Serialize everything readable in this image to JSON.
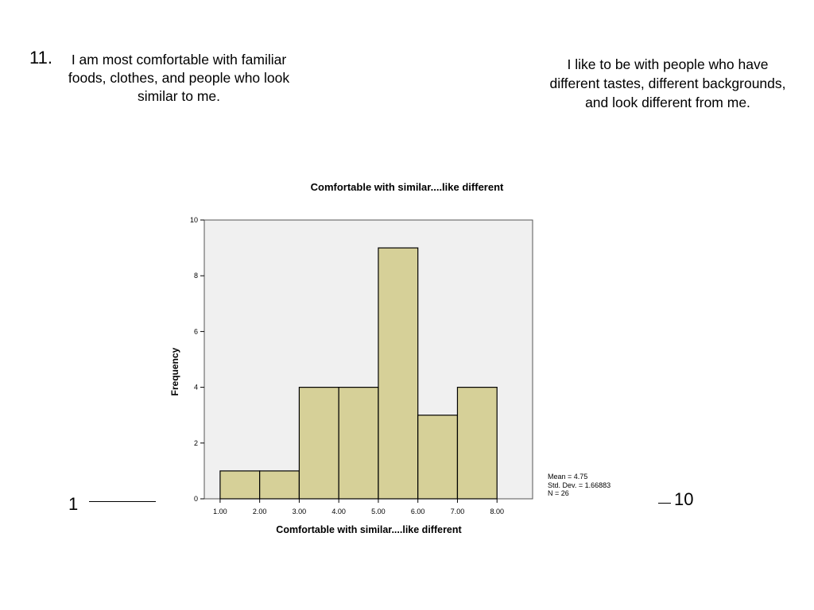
{
  "question": {
    "number": "11.",
    "left_statement": "I am most comfortable with familiar foods, clothes, and people who look similar to me.",
    "right_statement": "I like to be with people who have different tastes, different backgrounds, and look different from me.",
    "scale_min_label": "1",
    "scale_max_label": "10"
  },
  "chart_data": {
    "type": "bar",
    "title": "Comfortable with similar....like different",
    "xlabel": "Comfortable with similar....like different",
    "ylabel": "Frequency",
    "bin_edges": [
      1,
      2,
      3,
      4,
      5,
      6,
      7,
      8
    ],
    "bin_edge_labels": [
      "1.00",
      "2.00",
      "3.00",
      "4.00",
      "5.00",
      "6.00",
      "7.00",
      "8.00"
    ],
    "values": [
      1,
      1,
      4,
      4,
      9,
      3,
      4
    ],
    "ylim": [
      0,
      10
    ],
    "yticks": [
      0,
      2,
      4,
      6,
      8,
      10
    ],
    "xlim": [
      0.6,
      8.9
    ],
    "grid": false,
    "colors": {
      "bar_fill": "#d6d098",
      "bar_stroke": "#000000",
      "plot_bg": "#f0f0f0"
    },
    "stats": {
      "mean": "Mean = 4.75",
      "std_dev": "Std. Dev. = 1.66883",
      "n": "N = 26"
    }
  }
}
